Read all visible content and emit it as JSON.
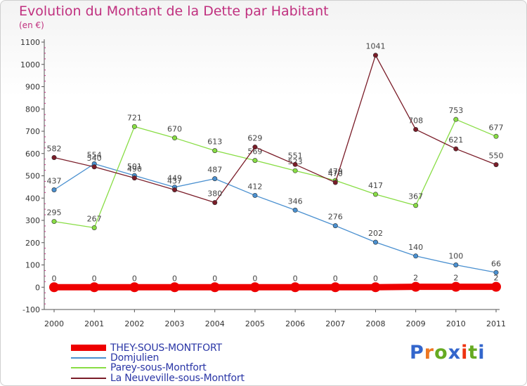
{
  "chart_data": {
    "type": "line",
    "title": "Evolution du Montant de la Dette par Habitant",
    "unit_label": "(en €)",
    "categories": [
      "2000",
      "2001",
      "2002",
      "2003",
      "2004",
      "2005",
      "2006",
      "2007",
      "2008",
      "2009",
      "2010",
      "2011"
    ],
    "ylim": [
      -100,
      1100
    ],
    "yticks": [
      -100,
      0,
      100,
      200,
      300,
      400,
      500,
      600,
      700,
      800,
      900,
      1000,
      1100
    ],
    "xlabel": "",
    "ylabel": "",
    "grid": false,
    "legend_position": "bottom-left",
    "series": [
      {
        "name": "THEY-SOUS-MONTFORT",
        "color": "#ee0000",
        "values": [
          0,
          0,
          0,
          0,
          0,
          0,
          0,
          0,
          0,
          2,
          2,
          2
        ],
        "labels": [
          "0",
          "0",
          "0",
          "0",
          "0",
          "0",
          "0",
          "0",
          "0",
          "2",
          "2",
          "2"
        ]
      },
      {
        "name": "Domjulien",
        "color": "#4a90d0",
        "values": [
          437,
          554,
          501,
          449,
          487,
          412,
          346,
          276,
          202,
          140,
          100,
          66
        ],
        "labels": [
          "437",
          "554",
          "501",
          "449",
          "487",
          "412",
          "346",
          "276",
          "202",
          "140",
          "100",
          "66"
        ]
      },
      {
        "name": "Parey-sous-Montfort",
        "color": "#88dd44",
        "values": [
          295,
          267,
          721,
          670,
          613,
          569,
          523,
          479,
          417,
          367,
          753,
          677
        ],
        "labels": [
          "295",
          "267",
          "721",
          "670",
          "613",
          "569",
          "523",
          "479",
          "417",
          "367",
          "753",
          "677"
        ]
      },
      {
        "name": "La Neuveville-sous-Montfort",
        "color": "#7a1c28",
        "values": [
          582,
          540,
          490,
          437,
          380,
          629,
          551,
          470,
          1041,
          708,
          621,
          550
        ],
        "labels": [
          "582",
          "540",
          "490",
          "437",
          "380",
          "629",
          "551",
          "470",
          "1041",
          "708",
          "621",
          "550"
        ]
      }
    ]
  },
  "logo": {
    "text": "Proxiti",
    "letter_colors": [
      "#3366cc",
      "#ee7722",
      "#66aa22",
      "#3366cc",
      "#ee3311",
      "#66aa22",
      "#3366cc"
    ]
  }
}
